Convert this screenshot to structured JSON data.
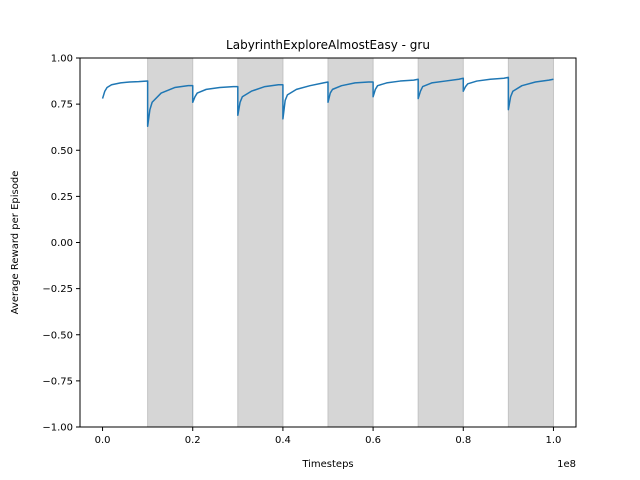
{
  "chart_data": {
    "type": "line",
    "title": "LabyrinthExploreAlmostEasy - gru",
    "xlabel": "Timesteps",
    "ylabel": "Average Reward per Episode",
    "x_scale_label": "1e8",
    "xlim": [
      -0.05,
      1.05
    ],
    "ylim": [
      -1.0,
      1.0
    ],
    "x_ticks": [
      0.0,
      0.2,
      0.4,
      0.6,
      0.8,
      1.0
    ],
    "x_tick_labels": [
      "0.0",
      "0.2",
      "0.4",
      "0.6",
      "0.8",
      "1.0"
    ],
    "y_ticks": [
      -1.0,
      -0.75,
      -0.5,
      -0.25,
      0.0,
      0.25,
      0.5,
      0.75,
      1.0
    ],
    "y_tick_labels": [
      "−1.00",
      "−0.75",
      "−0.50",
      "−0.25",
      "0.00",
      "0.25",
      "0.50",
      "0.75",
      "1.00"
    ],
    "grid": false,
    "line_color": "#1f77b4",
    "shade_color": "#d6d6d6",
    "shaded_regions": [
      [
        0.1,
        0.2
      ],
      [
        0.3,
        0.4
      ],
      [
        0.5,
        0.6
      ],
      [
        0.7,
        0.8
      ],
      [
        0.9,
        1.0
      ]
    ],
    "series": [
      {
        "x": [
          0.0,
          0.005,
          0.01,
          0.02,
          0.04,
          0.06,
          0.08,
          0.1,
          0.1,
          0.105,
          0.11,
          0.13,
          0.16,
          0.19,
          0.2,
          0.2,
          0.205,
          0.21,
          0.23,
          0.26,
          0.29,
          0.3,
          0.3,
          0.305,
          0.31,
          0.33,
          0.36,
          0.39,
          0.4,
          0.4,
          0.405,
          0.41,
          0.43,
          0.46,
          0.49,
          0.5,
          0.5,
          0.505,
          0.51,
          0.53,
          0.56,
          0.59,
          0.6,
          0.6,
          0.605,
          0.61,
          0.63,
          0.66,
          0.69,
          0.7,
          0.7,
          0.705,
          0.71,
          0.73,
          0.76,
          0.79,
          0.8,
          0.8,
          0.805,
          0.81,
          0.83,
          0.86,
          0.89,
          0.9,
          0.9,
          0.905,
          0.91,
          0.93,
          0.96,
          0.99,
          1.0
        ],
        "y": [
          0.78,
          0.82,
          0.84,
          0.855,
          0.865,
          0.87,
          0.872,
          0.875,
          0.63,
          0.72,
          0.76,
          0.81,
          0.84,
          0.85,
          0.85,
          0.76,
          0.79,
          0.81,
          0.83,
          0.84,
          0.845,
          0.845,
          0.69,
          0.76,
          0.79,
          0.82,
          0.845,
          0.855,
          0.855,
          0.67,
          0.77,
          0.8,
          0.83,
          0.85,
          0.865,
          0.87,
          0.76,
          0.81,
          0.83,
          0.85,
          0.865,
          0.87,
          0.87,
          0.79,
          0.83,
          0.85,
          0.865,
          0.875,
          0.88,
          0.885,
          0.78,
          0.82,
          0.845,
          0.865,
          0.875,
          0.885,
          0.89,
          0.82,
          0.845,
          0.86,
          0.875,
          0.885,
          0.89,
          0.895,
          0.72,
          0.79,
          0.82,
          0.85,
          0.87,
          0.88,
          0.885
        ]
      }
    ]
  }
}
